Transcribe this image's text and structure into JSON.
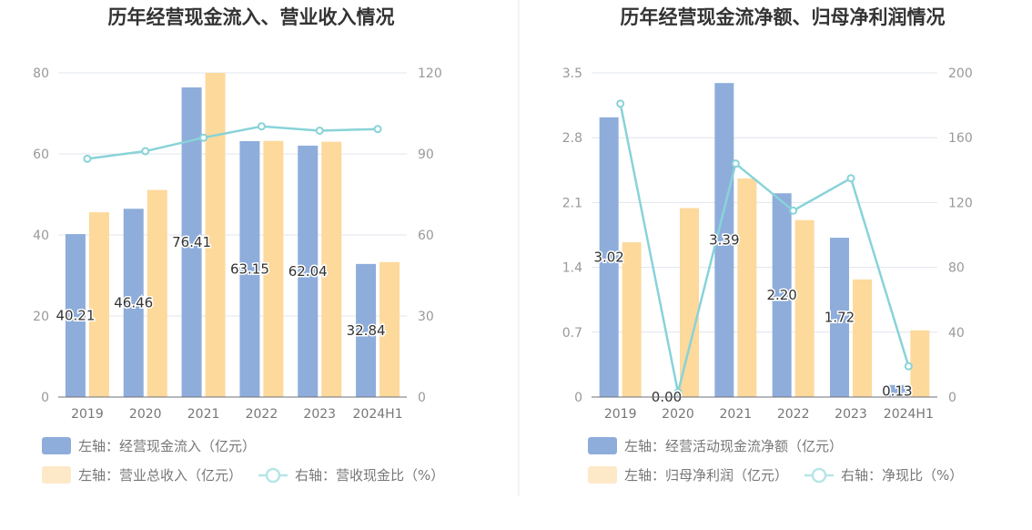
{
  "colors": {
    "bar_primary": "#8eaddb",
    "bar_secondary": "#fdd99c",
    "line": "#88d3d8",
    "grid": "#e1e4ee",
    "divider": "#e8e8e8"
  },
  "chart_data": [
    {
      "type": "bar",
      "title": "历年经营现金流入、营业收入情况",
      "categories": [
        "2019",
        "2020",
        "2021",
        "2022",
        "2023",
        "2024H1"
      ],
      "left_axis": {
        "ylim": [
          0,
          80
        ],
        "ticks": [
          "0",
          "20",
          "40",
          "60",
          "80"
        ]
      },
      "right_axis": {
        "ylim": [
          0,
          120
        ],
        "ticks": [
          "0",
          "30",
          "60",
          "90",
          "120"
        ]
      },
      "grid": true,
      "legend_placement": "bottom-left",
      "series": [
        {
          "name": "左轴：经营现金流入（亿元）",
          "kind": "bar",
          "axis": "left",
          "color": "#8eaddb",
          "values": [
            40.21,
            46.46,
            76.41,
            63.15,
            62.04,
            32.84
          ],
          "labels": [
            "40.21",
            "46.46",
            "76.41",
            "63.15",
            "62.04",
            "32.84"
          ]
        },
        {
          "name": "左轴：营业总收入（亿元）",
          "kind": "bar",
          "axis": "left",
          "color": "#fdd99c",
          "values": [
            45.6,
            51.1,
            80.0,
            63.2,
            63.0,
            33.3
          ]
        },
        {
          "name": "右轴：营收现金比（%）",
          "kind": "line",
          "axis": "right",
          "color": "#88d3d8",
          "values": [
            88.2,
            91.0,
            96.0,
            100.2,
            98.6,
            99.2
          ]
        }
      ]
    },
    {
      "type": "bar",
      "title": "历年经营现金流净额、归母净利润情况",
      "categories": [
        "2019",
        "2020",
        "2021",
        "2022",
        "2023",
        "2024H1"
      ],
      "left_axis": {
        "ylim": [
          0,
          3.5
        ],
        "ticks": [
          "0",
          "0.7",
          "1.4",
          "2.1",
          "2.8",
          "3.5"
        ]
      },
      "right_axis": {
        "ylim": [
          0,
          200
        ],
        "ticks": [
          "0",
          "40",
          "80",
          "120",
          "160",
          "200"
        ]
      },
      "grid": true,
      "legend_placement": "bottom-left",
      "series": [
        {
          "name": "左轴：经营活动现金流净额（亿元）",
          "kind": "bar",
          "axis": "left",
          "color": "#8eaddb",
          "values": [
            3.02,
            0.0,
            3.39,
            2.2,
            1.72,
            0.13
          ],
          "labels": [
            "3.02",
            "0.00",
            "3.39",
            "2.20",
            "1.72",
            "0.13"
          ]
        },
        {
          "name": "左轴：归母净利润（亿元）",
          "kind": "bar",
          "axis": "left",
          "color": "#fdd99c",
          "values": [
            1.67,
            2.04,
            2.36,
            1.91,
            1.27,
            0.72
          ]
        },
        {
          "name": "右轴：净现比（%）",
          "kind": "line",
          "axis": "right",
          "color": "#88d3d8",
          "values": [
            181,
            3,
            144,
            115,
            135,
            19
          ]
        }
      ]
    }
  ]
}
